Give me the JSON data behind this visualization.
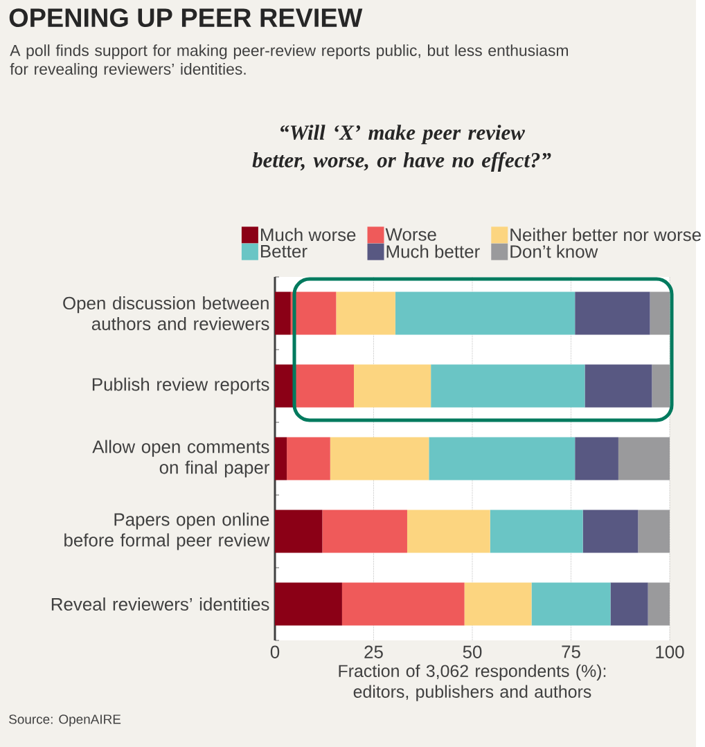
{
  "chart_data": {
    "type": "bar",
    "orientation": "horizontal",
    "stacked": true,
    "title": "OPENING UP PEER REVIEW",
    "subtitle": "A poll finds support for making peer-review reports public, but less enthusiasm for revealing reviewers’ identities.",
    "annotations": [
      "“Will ‘X’ make peer review better, worse, or have no effect?”",
      "Source: OpenAIRE"
    ],
    "xlabel": "Fraction of 3,062 respondents (%): editors, publishers and authors",
    "categories": [
      "Open discussion between authors and reviewers",
      "Publish review reports",
      "Allow open comments on final paper",
      "Papers open online before formal peer review",
      "Reveal reviewers’ identities"
    ],
    "series": [
      {
        "name": "Much worse",
        "color": "#8b0016",
        "values": [
          4,
          5,
          3,
          12,
          17
        ]
      },
      {
        "name": "Worse",
        "color": "#ef5a5a",
        "values": [
          11.5,
          15,
          11,
          21.5,
          31
        ]
      },
      {
        "name": "Neither better nor worse",
        "color": "#fcd580",
        "values": [
          15,
          19.5,
          25,
          21,
          17
        ]
      },
      {
        "name": "Better",
        "color": "#6ac5c5",
        "values": [
          45.5,
          39,
          37,
          23.5,
          20
        ]
      },
      {
        "name": "Much better",
        "color": "#585882",
        "values": [
          19,
          17,
          11,
          14,
          9.5
        ]
      },
      {
        "name": "Don’t know",
        "color": "#9a9a9c",
        "values": [
          5,
          4.5,
          13,
          8,
          5.5
        ]
      }
    ],
    "xlim": [
      0,
      100
    ],
    "xticks": [
      0,
      25,
      50,
      75,
      100
    ],
    "grid": "x",
    "legend": "top"
  }
}
